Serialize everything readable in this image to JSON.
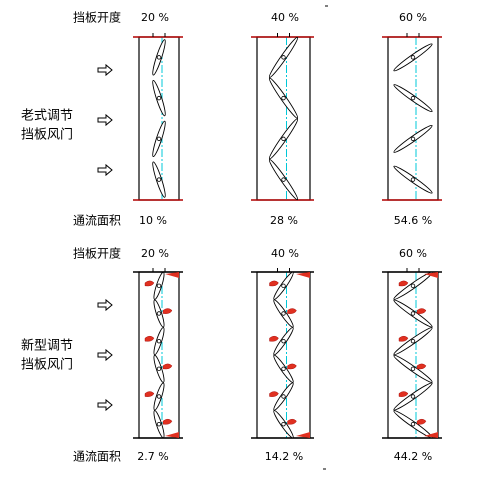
{
  "old_damper": {
    "label_lines": [
      "老式调节",
      "挡板风门"
    ],
    "opening_label": "挡板开度",
    "openings": [
      "20 %",
      "40 %",
      "60 %"
    ],
    "area_label": "通流面积",
    "areas": [
      "10 %",
      "28 %",
      "54.6 %"
    ]
  },
  "new_damper": {
    "label_lines": [
      "新型调节",
      "挡板风门"
    ],
    "opening_label": "挡板开度",
    "openings": [
      "20 %",
      "40 %",
      "60 %"
    ],
    "area_label": "通流面积",
    "areas": [
      "2.7 %",
      "14.2 %",
      "44.2 %"
    ]
  }
}
